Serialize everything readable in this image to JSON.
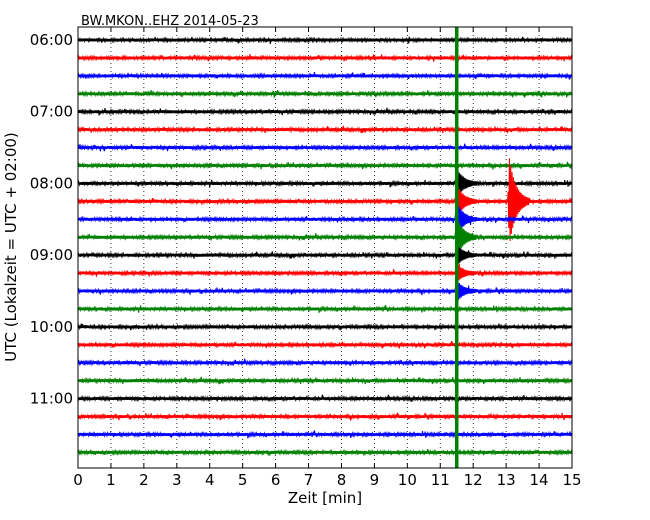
{
  "chart_data": {
    "type": "line",
    "title": "BW.MKON..EHZ 2014-05-23",
    "xlabel": "Zeit  [min]",
    "ylabel": "UTC (Lokalzeit = UTC + 02:00)",
    "xlim": [
      0,
      15
    ],
    "x_ticks": [
      0,
      1,
      2,
      3,
      4,
      5,
      6,
      7,
      8,
      9,
      10,
      11,
      12,
      13,
      14,
      15
    ],
    "x_tick_labels": [
      "0",
      "1",
      "2",
      "3",
      "4",
      "5",
      "6",
      "7",
      "8",
      "9",
      "10",
      "11",
      "12",
      "13",
      "14",
      "15"
    ],
    "y_tick_labels": [
      "06:00",
      "07:00",
      "08:00",
      "09:00",
      "10:00",
      "11:00"
    ],
    "grid": "vertical dotted",
    "trace_colors": [
      "#000000",
      "#ff0000",
      "#0000ff",
      "#008000"
    ],
    "rows": [
      {
        "start": "06:00",
        "color": "#000000"
      },
      {
        "start": "06:15",
        "color": "#ff0000"
      },
      {
        "start": "06:30",
        "color": "#0000ff"
      },
      {
        "start": "06:45",
        "color": "#008000"
      },
      {
        "start": "07:00",
        "color": "#000000"
      },
      {
        "start": "07:15",
        "color": "#ff0000"
      },
      {
        "start": "07:30",
        "color": "#0000ff"
      },
      {
        "start": "07:45",
        "color": "#008000"
      },
      {
        "start": "08:00",
        "color": "#000000"
      },
      {
        "start": "08:15",
        "color": "#ff0000"
      },
      {
        "start": "08:30",
        "color": "#0000ff"
      },
      {
        "start": "08:45",
        "color": "#008000"
      },
      {
        "start": "09:00",
        "color": "#000000"
      },
      {
        "start": "09:15",
        "color": "#ff0000"
      },
      {
        "start": "09:30",
        "color": "#0000ff"
      },
      {
        "start": "09:45",
        "color": "#008000"
      },
      {
        "start": "10:00",
        "color": "#000000"
      },
      {
        "start": "10:15",
        "color": "#ff0000"
      },
      {
        "start": "10:30",
        "color": "#0000ff"
      },
      {
        "start": "10:45",
        "color": "#008000"
      },
      {
        "start": "11:00",
        "color": "#000000"
      },
      {
        "start": "11:15",
        "color": "#ff0000"
      },
      {
        "start": "11:30",
        "color": "#0000ff"
      },
      {
        "start": "11:45",
        "color": "#008000"
      }
    ],
    "events": [
      {
        "row": 8,
        "minute": 11.5,
        "amplitude": 0.9
      },
      {
        "row": 9,
        "minute": 11.5,
        "amplitude": 1.0
      },
      {
        "row": 9,
        "minute": 13.1,
        "amplitude": 2.6
      },
      {
        "row": 10,
        "minute": 11.5,
        "amplitude": 1.0
      },
      {
        "row": 11,
        "minute": 11.5,
        "amplitude": 1.2
      },
      {
        "row": 12,
        "minute": 11.5,
        "amplitude": 0.6
      },
      {
        "row": 13,
        "minute": 11.5,
        "amplitude": 0.5
      },
      {
        "row": 14,
        "minute": 11.5,
        "amplitude": 0.6
      }
    ],
    "markers": [
      {
        "minute": 11.5,
        "color": "#008000"
      }
    ]
  }
}
